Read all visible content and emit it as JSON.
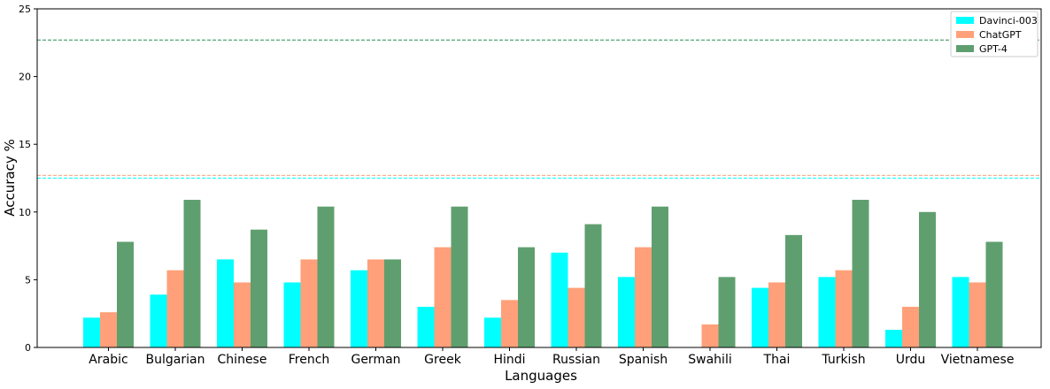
{
  "chart_data": {
    "type": "bar",
    "xlabel": "Languages",
    "ylabel": "Accuracy %",
    "categories": [
      "Arabic",
      "Bulgarian",
      "Chinese",
      "French",
      "German",
      "Greek",
      "Hindi",
      "Russian",
      "Spanish",
      "Swahili",
      "Thai",
      "Turkish",
      "Urdu",
      "Vietnamese"
    ],
    "series": [
      {
        "name": "Davinci-003",
        "color": "#00ffff",
        "values": [
          2.2,
          3.9,
          6.5,
          4.8,
          5.7,
          3.0,
          2.2,
          7.0,
          5.2,
          0.0,
          4.4,
          5.2,
          1.3,
          5.2
        ]
      },
      {
        "name": "ChatGPT",
        "color": "#ffa07a",
        "values": [
          2.6,
          5.7,
          4.8,
          6.5,
          6.5,
          7.4,
          3.5,
          4.4,
          7.4,
          1.7,
          4.8,
          5.7,
          3.0,
          4.8
        ]
      },
      {
        "name": "GPT-4",
        "color": "#5f9f6f",
        "values": [
          7.8,
          10.9,
          8.7,
          10.4,
          6.5,
          10.4,
          7.4,
          9.1,
          10.4,
          5.2,
          8.3,
          10.9,
          10.0,
          7.8
        ]
      }
    ],
    "reference_lines": [
      {
        "series": "Davinci-003",
        "value": 12.5,
        "color": "#00ffff",
        "style": "dashed"
      },
      {
        "series": "ChatGPT",
        "value": 12.7,
        "color": "#ffa07a",
        "style": "dashed"
      },
      {
        "series": "GPT-4",
        "value": 22.7,
        "color": "#2e8b57",
        "style": "dashed"
      }
    ],
    "ylim": [
      0,
      25
    ],
    "yticks": [
      0,
      5,
      10,
      15,
      20,
      25
    ],
    "grid": false,
    "legend": "top-right"
  }
}
